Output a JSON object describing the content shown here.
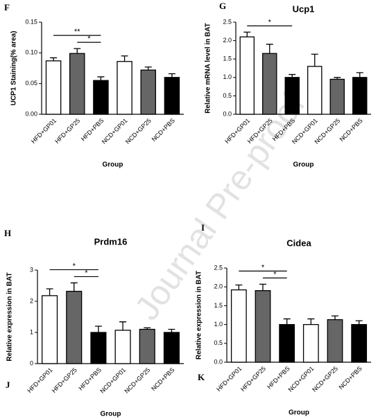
{
  "panel_labels": [
    "J",
    "K"
  ],
  "watermark": "Journal Pre-proof",
  "chart_data": [
    {
      "type": "bar",
      "panel": "F",
      "ylabel": "UCP1 Staining(% area)",
      "xlabel": "Group",
      "categories": [
        "HFD+GP01",
        "HFD+GP25",
        "HFD+PBS",
        "NCD+GP01",
        "NCD+GP25",
        "NCD+PBS"
      ],
      "values": [
        0.087,
        0.099,
        0.055,
        0.086,
        0.072,
        0.06
      ],
      "errors": [
        0.005,
        0.008,
        0.006,
        0.009,
        0.005,
        0.006
      ],
      "colors": [
        "#ffffff",
        "#666666",
        "#000000",
        "#ffffff",
        "#666666",
        "#000000"
      ],
      "ylim": [
        0,
        0.15
      ],
      "yticks": [
        {
          "value": 0,
          "label": "0.00"
        },
        {
          "value": 0.05,
          "label": "0.05"
        },
        {
          "value": 0.1,
          "label": "0.10"
        },
        {
          "value": 0.15,
          "label": "0.15"
        }
      ],
      "annotations": [
        {
          "text": "**",
          "between": [
            "HFD+GP01",
            "HFD+PBS"
          ]
        },
        {
          "text": "*",
          "between": [
            "HFD+GP25",
            "HFD+PBS"
          ]
        }
      ]
    },
    {
      "type": "bar",
      "panel": "G",
      "title": "Ucp1",
      "ylabel": "Relative mRNA level in BAT",
      "xlabel": "Group",
      "categories": [
        "HFD+GP01",
        "HFD+GP25",
        "HFD+PBS",
        "NCD+GP01",
        "NCD+GP25",
        "NCD+PBS"
      ],
      "values": [
        2.1,
        1.65,
        1.0,
        1.3,
        0.95,
        1.0
      ],
      "errors": [
        0.13,
        0.25,
        0.08,
        0.33,
        0.05,
        0.13
      ],
      "colors": [
        "#ffffff",
        "#666666",
        "#000000",
        "#ffffff",
        "#666666",
        "#000000"
      ],
      "ylim": [
        0,
        2.5
      ],
      "yticks": [
        {
          "value": 0,
          "label": "0.0"
        },
        {
          "value": 0.5,
          "label": "0.5"
        },
        {
          "value": 1,
          "label": "1.0"
        },
        {
          "value": 1.5,
          "label": "1.5"
        },
        {
          "value": 2,
          "label": "2.0"
        },
        {
          "value": 2.5,
          "label": "2.5"
        }
      ],
      "annotations": [
        {
          "text": "*",
          "between": [
            "HFD+GP01",
            "HFD+PBS"
          ]
        }
      ]
    },
    {
      "type": "bar",
      "panel": "H",
      "title": "Prdm16",
      "ylabel": "Relative expression in BAT",
      "xlabel": "Group",
      "categories": [
        "HFD+GP01",
        "HFD+GP25",
        "HFD+PBS",
        "NCD+GP01",
        "NCD+GP25",
        "NCD+PBS"
      ],
      "values": [
        2.18,
        2.32,
        1.0,
        1.07,
        1.1,
        1.0
      ],
      "errors": [
        0.22,
        0.27,
        0.2,
        0.27,
        0.05,
        0.1
      ],
      "colors": [
        "#ffffff",
        "#666666",
        "#000000",
        "#ffffff",
        "#666666",
        "#000000"
      ],
      "ylim": [
        0,
        3
      ],
      "yticks": [
        0,
        1,
        2,
        3
      ],
      "annotations": [
        {
          "text": "*",
          "between": [
            "HFD+GP01",
            "HFD+PBS"
          ]
        },
        {
          "text": "*",
          "between": [
            "HFD+GP25",
            "HFD+PBS"
          ]
        }
      ]
    },
    {
      "type": "bar",
      "panel": "I",
      "title": "Cidea",
      "ylabel": "Relative expression in BAT",
      "xlabel": "Group",
      "categories": [
        "HFD+GP01",
        "HFD+GP25",
        "HFD+PBS",
        "NCD+GP01",
        "NCD+GP25",
        "NCD+PBS"
      ],
      "values": [
        1.92,
        1.9,
        1.0,
        1.0,
        1.13,
        1.0
      ],
      "errors": [
        0.13,
        0.17,
        0.15,
        0.15,
        0.1,
        0.1
      ],
      "colors": [
        "#ffffff",
        "#666666",
        "#000000",
        "#ffffff",
        "#666666",
        "#000000"
      ],
      "ylim": [
        0,
        2.5
      ],
      "yticks": [
        {
          "value": 0,
          "label": "0.0"
        },
        {
          "value": 0.5,
          "label": "0.5"
        },
        {
          "value": 1,
          "label": "1.0"
        },
        {
          "value": 1.5,
          "label": "1.5"
        },
        {
          "value": 2,
          "label": "2.0"
        },
        {
          "value": 2.5,
          "label": "2.5"
        }
      ],
      "annotations": [
        {
          "text": "*",
          "between": [
            "HFD+GP01",
            "HFD+PBS"
          ]
        },
        {
          "text": "*",
          "between": [
            "HFD+GP25",
            "HFD+PBS"
          ]
        }
      ]
    }
  ]
}
